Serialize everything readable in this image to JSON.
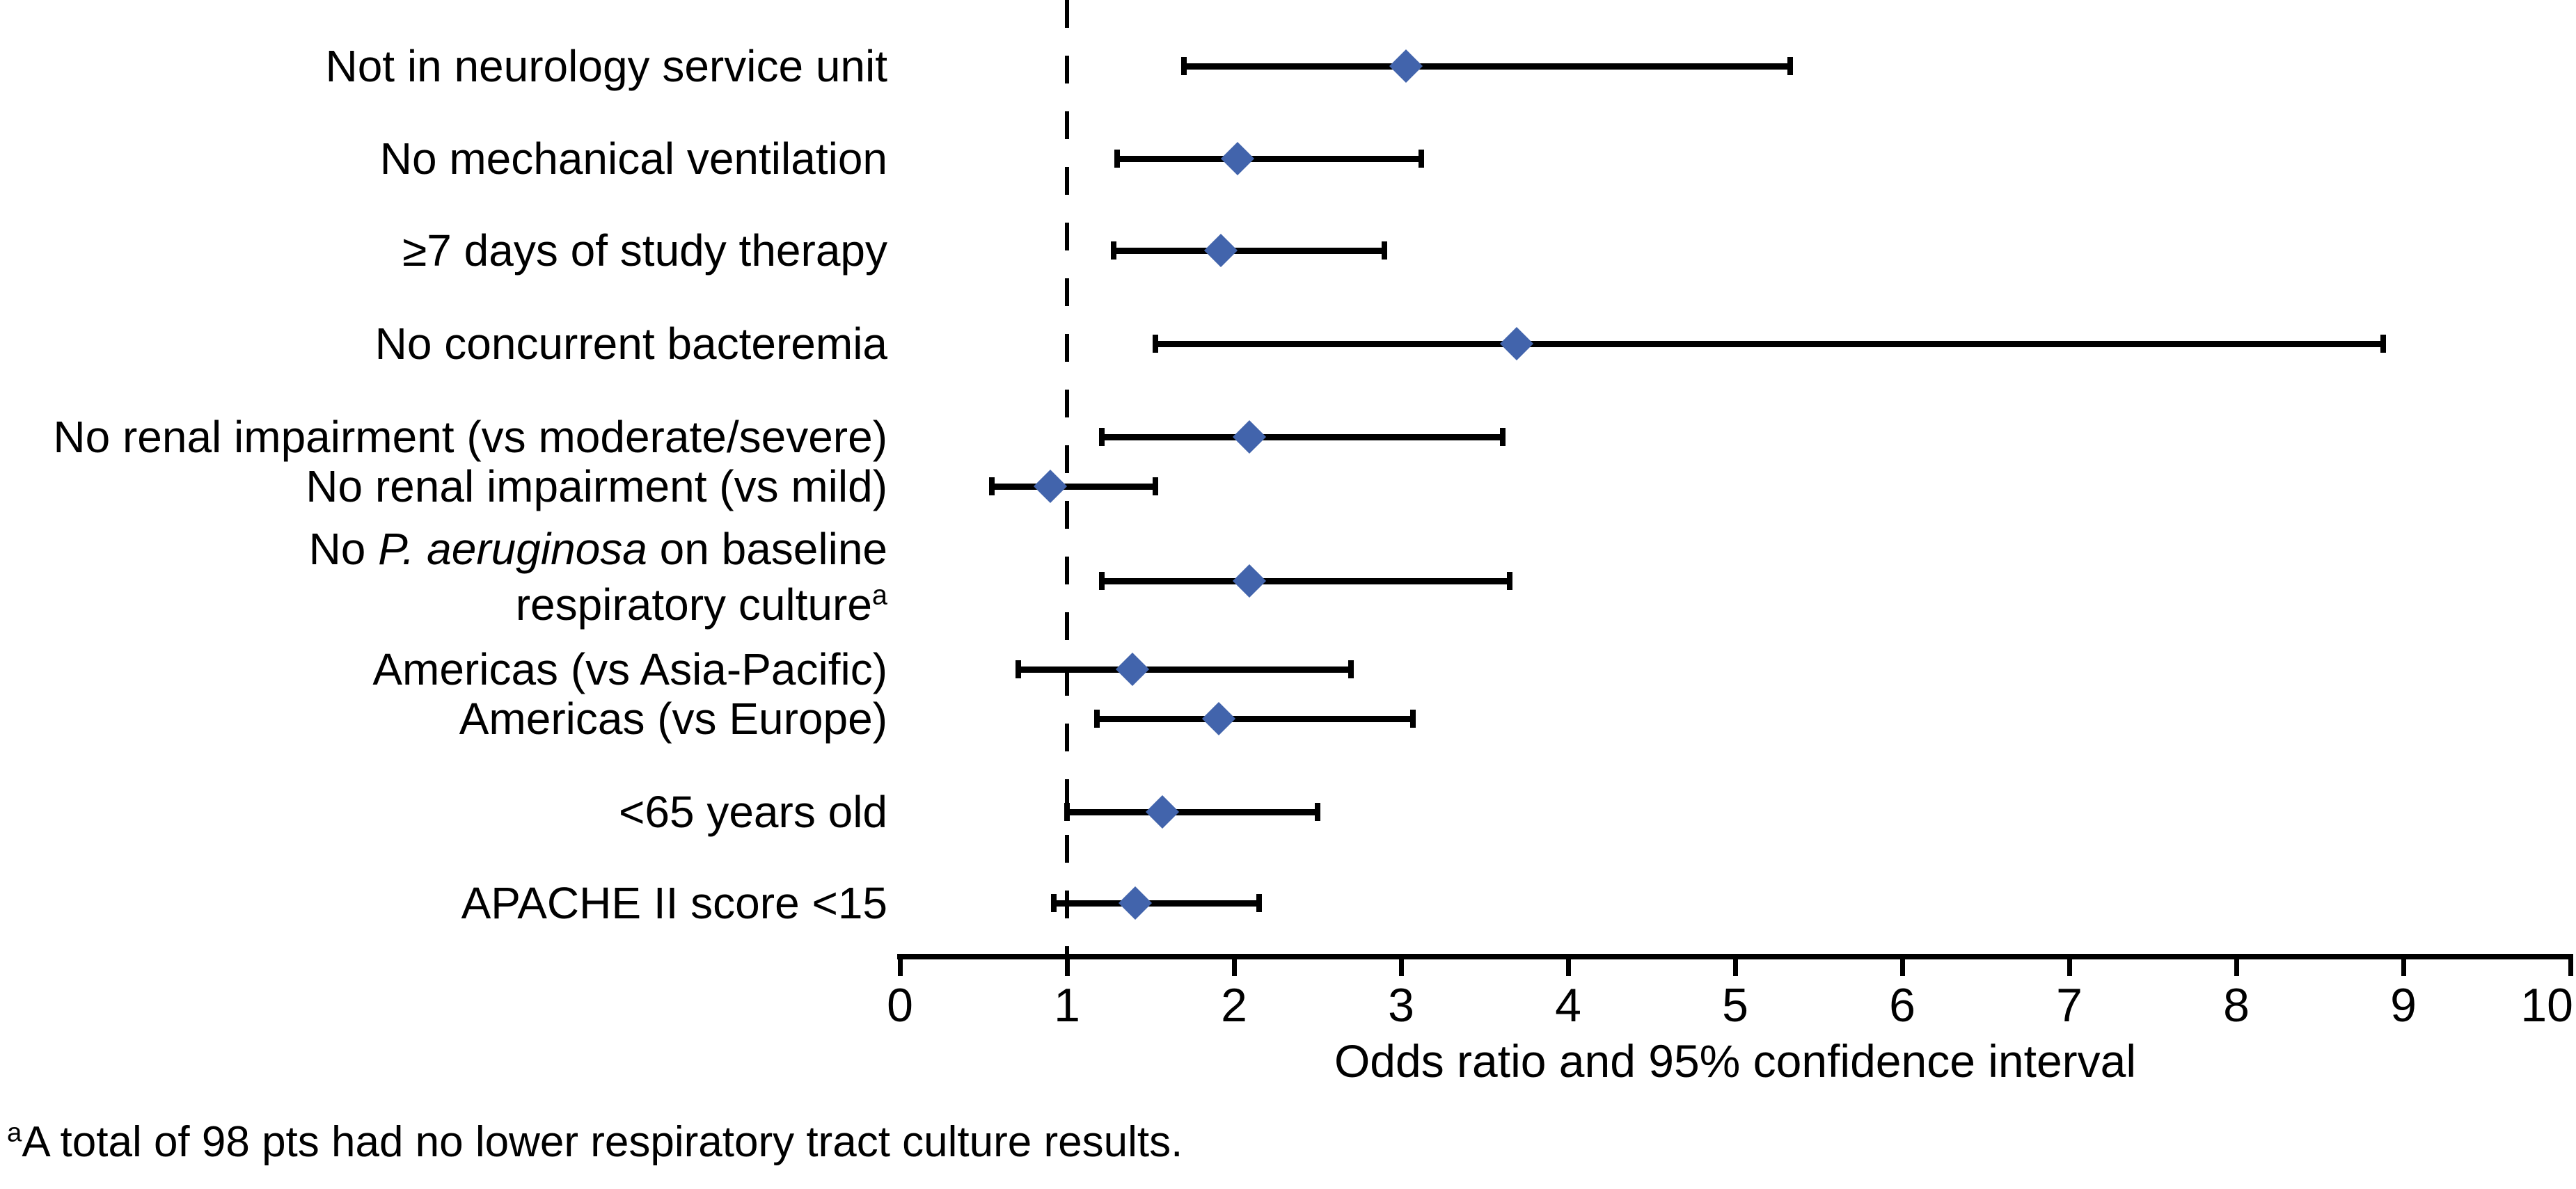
{
  "figure": {
    "footnote": {
      "sup": "a",
      "text": "A total of 98 pts had no lower respiratory tract culture results."
    }
  },
  "chart_data": {
    "type": "scatter",
    "subtype": "forest-plot",
    "title": "",
    "xlabel": "Odds ratio and 95% confidence interval",
    "ylabel": "",
    "xlim": [
      0,
      10
    ],
    "x_ticks": [
      "0",
      "1",
      "2",
      "3",
      "4",
      "5",
      "6",
      "7",
      "8",
      "9",
      "10"
    ],
    "reference_line_x": 1,
    "grid": false,
    "legend": false,
    "marker_shape": "diamond",
    "marker_color": "#4264AC",
    "line_color": "#000000",
    "rows": [
      {
        "label": "Not in neurology service unit",
        "or": 3.03,
        "ci_low": 1.7,
        "ci_high": 5.33
      },
      {
        "label": "No mechanical ventilation",
        "or": 2.02,
        "ci_low": 1.3,
        "ci_high": 3.12
      },
      {
        "label": "≥7 days of study therapy",
        "or": 1.92,
        "ci_low": 1.28,
        "ci_high": 2.9
      },
      {
        "label": "No concurrent bacteremia",
        "or": 3.69,
        "ci_low": 1.53,
        "ci_high": 8.88
      },
      {
        "label": "No renal impairment (vs moderate/severe)",
        "or": 2.09,
        "ci_low": 1.21,
        "ci_high": 3.61
      },
      {
        "label": "No renal impairment (vs mild)",
        "or": 0.9,
        "ci_low": 0.55,
        "ci_high": 1.53
      },
      {
        "label": "No P. aeruginosa on baseline respiratory culture (a)",
        "parts": {
          "prefix": "No ",
          "italic": "P. aeruginosa",
          "line1_suffix": " on baseline",
          "line2": "respiratory culture",
          "sup": "a"
        },
        "or": 2.09,
        "ci_low": 1.21,
        "ci_high": 3.65
      },
      {
        "label": "Americas (vs Asia-Pacific)",
        "or": 1.39,
        "ci_low": 0.71,
        "ci_high": 2.7
      },
      {
        "label": "Americas (vs Europe)",
        "or": 1.91,
        "ci_low": 1.18,
        "ci_high": 3.07
      },
      {
        "label": "<65 years old",
        "or": 1.57,
        "ci_low": 1.0,
        "ci_high": 2.5
      },
      {
        "label": "APACHE II score <15",
        "or": 1.41,
        "ci_low": 0.92,
        "ci_high": 2.15
      }
    ]
  }
}
